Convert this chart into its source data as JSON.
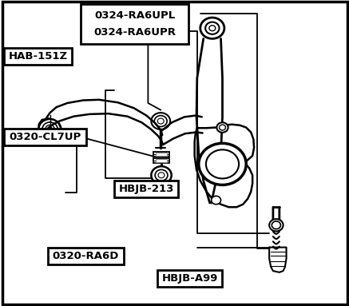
{
  "bg_color": "#ffffff",
  "border_color": "#000000",
  "fig_w": 4.37,
  "fig_h": 3.83,
  "dpi": 100,
  "labels": [
    {
      "text": "0324-RA6UPL\n0324-RA6UPR",
      "bx": 0.255,
      "by": 0.835,
      "bw": 0.295,
      "bh": 0.125,
      "fs": 9.5,
      "lw": 2.0
    },
    {
      "text": "HAB-151Z",
      "bx": 0.012,
      "by": 0.665,
      "bw": 0.185,
      "bh": 0.052,
      "fs": 9.5,
      "lw": 2.0
    },
    {
      "text": "0320-CL7UP",
      "bx": 0.012,
      "by": 0.455,
      "bw": 0.222,
      "bh": 0.052,
      "fs": 9.5,
      "lw": 2.0
    },
    {
      "text": "HBJB-213",
      "bx": 0.325,
      "by": 0.295,
      "bw": 0.175,
      "bh": 0.052,
      "fs": 9.5,
      "lw": 2.0
    },
    {
      "text": "0320-RA6D",
      "bx": 0.145,
      "by": 0.075,
      "bw": 0.21,
      "bh": 0.052,
      "fs": 9.5,
      "lw": 2.0
    },
    {
      "text": "HBJB-A99",
      "bx": 0.455,
      "by": 0.022,
      "bw": 0.175,
      "bh": 0.052,
      "fs": 9.5,
      "lw": 2.0
    }
  ]
}
